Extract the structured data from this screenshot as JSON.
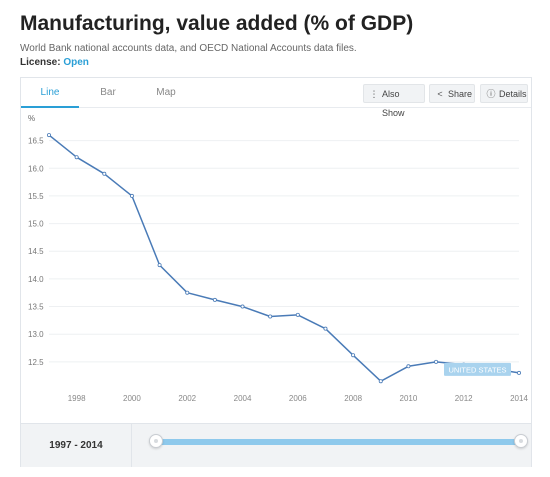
{
  "header": {
    "title": "Manufacturing, value added (% of GDP)",
    "source": "World Bank national accounts data, and OECD National Accounts data files.",
    "license_label": "License:",
    "license_value": "Open"
  },
  "tabs": [
    {
      "label": "Line",
      "active": true
    },
    {
      "label": "Bar",
      "active": false
    },
    {
      "label": "Map",
      "active": false
    }
  ],
  "toolbar": {
    "also_show": "Also Show",
    "share": "Share",
    "details": "Details"
  },
  "colors": {
    "line": "#4a7bb7",
    "accent": "#2a9fd6",
    "label_bg": "#a9d3ee"
  },
  "chart_data": {
    "type": "line",
    "ylabel": "%",
    "xlabel": "",
    "series": [
      {
        "name": "UNITED STATES",
        "x": [
          1997,
          1998,
          1999,
          2000,
          2001,
          2002,
          2003,
          2004,
          2005,
          2006,
          2007,
          2008,
          2009,
          2010,
          2011,
          2012,
          2013,
          2014
        ],
        "values": [
          16.6,
          16.2,
          15.9,
          15.5,
          14.25,
          13.75,
          13.62,
          13.5,
          13.32,
          13.35,
          13.1,
          12.62,
          12.15,
          12.42,
          12.5,
          12.45,
          12.38,
          12.3
        ]
      }
    ],
    "ylim": [
      12.1,
      16.8
    ],
    "xlim": [
      1997,
      2014
    ],
    "yticks": [
      12.5,
      13.0,
      13.5,
      14.0,
      14.5,
      15.0,
      15.5,
      16.0,
      16.5
    ],
    "ytick_labels": [
      "12.5",
      "13.0",
      "13.5",
      "14.0",
      "14.5",
      "15.0",
      "15.5",
      "16.0",
      "16.5"
    ],
    "xticks": [
      1998,
      2000,
      2002,
      2004,
      2006,
      2008,
      2010,
      2012,
      2014
    ],
    "xtick_labels": [
      "1998",
      "2000",
      "2002",
      "2004",
      "2006",
      "2008",
      "2010",
      "2012",
      "2014"
    ],
    "grid": true
  },
  "range": {
    "label": "1997 - 2014",
    "start": 1997,
    "end": 2014
  }
}
